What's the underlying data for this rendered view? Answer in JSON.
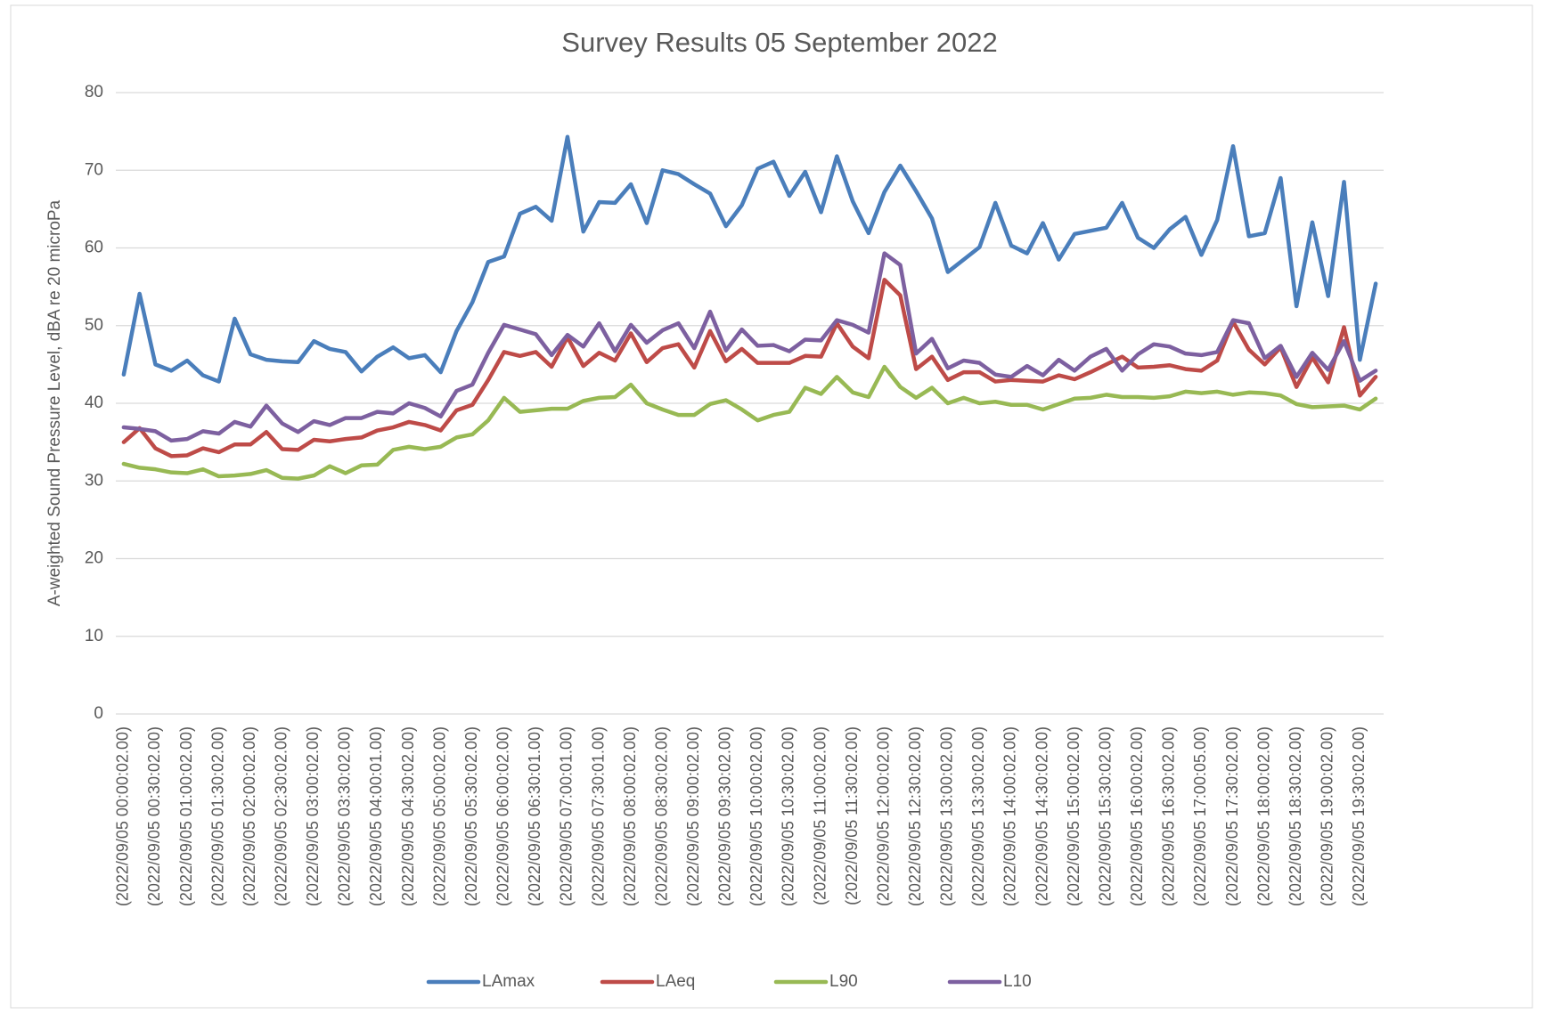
{
  "chart_data": {
    "type": "line",
    "title": "Survey Results 05 September 2022",
    "y_label": "A-weighted Sound Pressure Level, dBA re 20 microPa",
    "categories": [
      "(2022/09/05 00:00:02.00)",
      null,
      "(2022/09/05 00:30:02.00)",
      null,
      "(2022/09/05 01:00:02.00)",
      null,
      "(2022/09/05 01:30:02.00)",
      null,
      "(2022/09/05 02:00:02.00)",
      null,
      "(2022/09/05 02:30:02.00)",
      null,
      "(2022/09/05 03:00:02.00)",
      null,
      "(2022/09/05 03:30:02.00)",
      null,
      "(2022/09/05 04:00:01.00)",
      null,
      "(2022/09/05 04:30:02.00)",
      null,
      "(2022/09/05 05:00:02.00)",
      null,
      "(2022/09/05 05:30:02.00)",
      null,
      "(2022/09/05 06:00:02.00)",
      null,
      "(2022/09/05 06:30:01.00)",
      null,
      "(2022/09/05 07:00:01.00)",
      null,
      "(2022/09/05 07:30:01.00)",
      null,
      "(2022/09/05 08:00:02.00)",
      null,
      "(2022/09/05 08:30:02.00)",
      null,
      "(2022/09/05 09:00:02.00)",
      null,
      "(2022/09/05 09:30:02.00)",
      null,
      "(2022/09/05 10:00:02.00)",
      null,
      "(2022/09/05 10:30:02.00)",
      null,
      "(2022/09/05 11:00:02.00)",
      null,
      "(2022/09/05 11:30:02.00)",
      null,
      "(2022/09/05 12:00:02.00)",
      null,
      "(2022/09/05 12:30:02.00)",
      null,
      "(2022/09/05 13:00:02.00)",
      null,
      "(2022/09/05 13:30:02.00)",
      null,
      "(2022/09/05 14:00:02.00)",
      null,
      "(2022/09/05 14:30:02.00)",
      null,
      "(2022/09/05 15:00:02.00)",
      null,
      "(2022/09/05 15:30:02.00)",
      null,
      "(2022/09/05 16:00:02.00)",
      null,
      "(2022/09/05 16:30:02.00)",
      null,
      "(2022/09/05 17:00:05.00)",
      null,
      "(2022/09/05 17:30:02.00)",
      null,
      "(2022/09/05 18:00:02.00)",
      null,
      "(2022/09/05 18:30:02.00)",
      null,
      "(2022/09/05 19:00:02.00)",
      null,
      "(2022/09/05 19:30:02.00)",
      null
    ],
    "series": [
      {
        "name": "LAmax",
        "color": "#4a7ebb",
        "values": [
          43.7,
          54.1,
          45,
          44.2,
          45.5,
          43.6,
          42.8,
          50.9,
          46.3,
          45.6,
          45.4,
          45.3,
          48,
          47,
          46.6,
          44.1,
          46,
          47.2,
          45.8,
          46.2,
          44,
          49.3,
          53,
          58.2,
          58.9,
          64.4,
          65.3,
          63.5,
          74.3,
          62.1,
          65.9,
          65.8,
          68.2,
          63.2,
          70,
          69.5,
          68.2,
          67,
          62.8,
          65.5,
          70.2,
          71.1,
          66.7,
          69.8,
          64.6,
          71.8,
          66,
          61.9,
          67.2,
          70.6,
          67.3,
          63.8,
          56.9,
          58.5,
          60.1,
          65.8,
          60.3,
          59.3,
          63.2,
          58.5,
          61.8,
          62.2,
          62.6,
          65.8,
          61.3,
          60,
          62.4,
          64,
          59.1,
          63.6,
          73.1,
          61.5,
          61.9,
          69,
          52.5,
          63.3,
          53.8,
          68.5,
          45.6,
          55.4
        ]
      },
      {
        "name": "LAeq",
        "color": "#be4b48",
        "values": [
          35,
          36.8,
          34.2,
          33.2,
          33.3,
          34.2,
          33.7,
          34.7,
          34.7,
          36.3,
          34.1,
          34,
          35.3,
          35.1,
          35.4,
          35.6,
          36.5,
          36.9,
          37.6,
          37.2,
          36.5,
          39.1,
          39.8,
          43,
          46.6,
          46.1,
          46.6,
          44.7,
          48.5,
          44.8,
          46.5,
          45.5,
          49,
          45.3,
          47.1,
          47.6,
          44.6,
          49.3,
          45.4,
          47,
          45.2,
          45.2,
          45.2,
          46.1,
          46,
          50.3,
          47.3,
          45.8,
          55.9,
          53.9,
          44.4,
          46,
          43,
          44,
          44,
          42.8,
          43,
          42.9,
          42.8,
          43.6,
          43.1,
          44,
          45,
          46,
          44.6,
          44.7,
          44.9,
          44.4,
          44.2,
          45.5,
          50.5,
          46.9,
          45,
          47.2,
          42.1,
          45.9,
          42.7,
          49.8,
          41,
          43.4
        ]
      },
      {
        "name": "L90",
        "color": "#98b954",
        "values": [
          32.2,
          31.7,
          31.5,
          31.1,
          31,
          31.5,
          30.6,
          30.7,
          30.9,
          31.4,
          30.4,
          30.3,
          30.7,
          31.9,
          31,
          32,
          32.1,
          34,
          34.4,
          34.1,
          34.4,
          35.6,
          36,
          37.8,
          40.7,
          38.9,
          39.1,
          39.3,
          39.3,
          40.3,
          40.7,
          40.8,
          42.4,
          40,
          39.2,
          38.5,
          38.5,
          39.9,
          40.4,
          39.2,
          37.8,
          38.5,
          38.9,
          42,
          41.2,
          43.4,
          41.4,
          40.8,
          44.7,
          42.1,
          40.7,
          42,
          40,
          40.7,
          40,
          40.2,
          39.8,
          39.8,
          39.2,
          39.9,
          40.6,
          40.7,
          41.1,
          40.8,
          40.8,
          40.7,
          40.9,
          41.5,
          41.3,
          41.5,
          41.1,
          41.4,
          41.3,
          41,
          39.9,
          39.5,
          39.6,
          39.7,
          39.2,
          40.6
        ]
      },
      {
        "name": "L10",
        "color": "#7d60a0",
        "values": [
          36.9,
          36.7,
          36.4,
          35.2,
          35.4,
          36.4,
          36.1,
          37.6,
          37,
          39.7,
          37.4,
          36.3,
          37.7,
          37.2,
          38.1,
          38.1,
          38.9,
          38.7,
          40,
          39.4,
          38.3,
          41.6,
          42.4,
          46.5,
          50.1,
          49.5,
          48.9,
          46.2,
          48.8,
          47.3,
          50.3,
          46.7,
          50.1,
          47.8,
          49.4,
          50.3,
          47.1,
          51.8,
          46.8,
          49.5,
          47.4,
          47.5,
          46.7,
          48.2,
          48.1,
          50.7,
          50.1,
          49.1,
          59.3,
          57.8,
          46.4,
          48.3,
          44.5,
          45.5,
          45.2,
          43.7,
          43.4,
          44.8,
          43.6,
          45.6,
          44.2,
          46,
          47,
          44.2,
          46.3,
          47.6,
          47.3,
          46.4,
          46.2,
          46.6,
          50.7,
          50.3,
          45.8,
          47.4,
          43.4,
          46.5,
          44.3,
          48,
          42.9,
          44.2
        ]
      }
    ],
    "ylim": [
      0,
      80
    ],
    "yticks": [
      0,
      10,
      20,
      30,
      40,
      50,
      60,
      70,
      80
    ],
    "grid": true,
    "legend": "bottom"
  }
}
